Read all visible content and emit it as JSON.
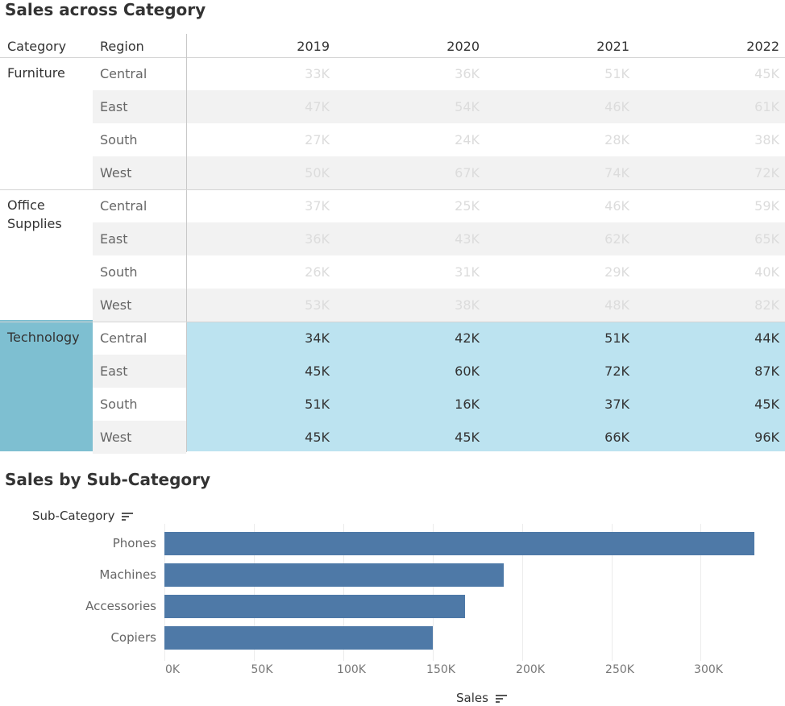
{
  "crosstab": {
    "title": "Sales across Category",
    "headers": {
      "category": "Category",
      "region": "Region",
      "years": [
        "2019",
        "2020",
        "2021",
        "2022"
      ]
    },
    "groups": [
      {
        "category": "Furniture",
        "rows": [
          {
            "region": "Central",
            "values": [
              "33K",
              "36K",
              "51K",
              "45K"
            ]
          },
          {
            "region": "East",
            "values": [
              "47K",
              "54K",
              "46K",
              "61K"
            ]
          },
          {
            "region": "South",
            "values": [
              "27K",
              "24K",
              "28K",
              "38K"
            ]
          },
          {
            "region": "West",
            "values": [
              "50K",
              "67K",
              "74K",
              "72K"
            ]
          }
        ]
      },
      {
        "category": "Office Supplies",
        "rows": [
          {
            "region": "Central",
            "values": [
              "37K",
              "25K",
              "46K",
              "59K"
            ]
          },
          {
            "region": "East",
            "values": [
              "36K",
              "43K",
              "62K",
              "65K"
            ]
          },
          {
            "region": "South",
            "values": [
              "26K",
              "31K",
              "29K",
              "40K"
            ]
          },
          {
            "region": "West",
            "values": [
              "53K",
              "38K",
              "48K",
              "82K"
            ]
          }
        ]
      },
      {
        "category": "Technology",
        "highlighted": true,
        "rows": [
          {
            "region": "Central",
            "values": [
              "34K",
              "42K",
              "51K",
              "44K"
            ]
          },
          {
            "region": "East",
            "values": [
              "45K",
              "60K",
              "72K",
              "87K"
            ]
          },
          {
            "region": "South",
            "values": [
              "51K",
              "16K",
              "37K",
              "45K"
            ]
          },
          {
            "region": "West",
            "values": [
              "45K",
              "45K",
              "66K",
              "96K"
            ]
          }
        ]
      }
    ]
  },
  "colors": {
    "highlight_band": "#bce3f0",
    "highlight_category": "#7ebfd1",
    "bar": "#4e79a7",
    "dimmed_text": "#dcdcdc"
  },
  "subcategory": {
    "title": "Sales by Sub-Category",
    "row_header": "Sub-Category",
    "sort_icon": "sort-descending-icon"
  },
  "chart_data": {
    "type": "bar",
    "orientation": "horizontal",
    "categories": [
      "Phones",
      "Machines",
      "Accessories",
      "Copiers"
    ],
    "values": [
      330000,
      190000,
      168000,
      150000
    ],
    "xlabel": "Sales",
    "ylabel": "Sub-Category",
    "xlim": [
      0,
      345000
    ],
    "ticks": [
      0,
      50000,
      100000,
      150000,
      200000,
      250000,
      300000
    ],
    "tick_labels": [
      "0K",
      "50K",
      "100K",
      "150K",
      "200K",
      "250K",
      "300K"
    ],
    "grid": true
  }
}
